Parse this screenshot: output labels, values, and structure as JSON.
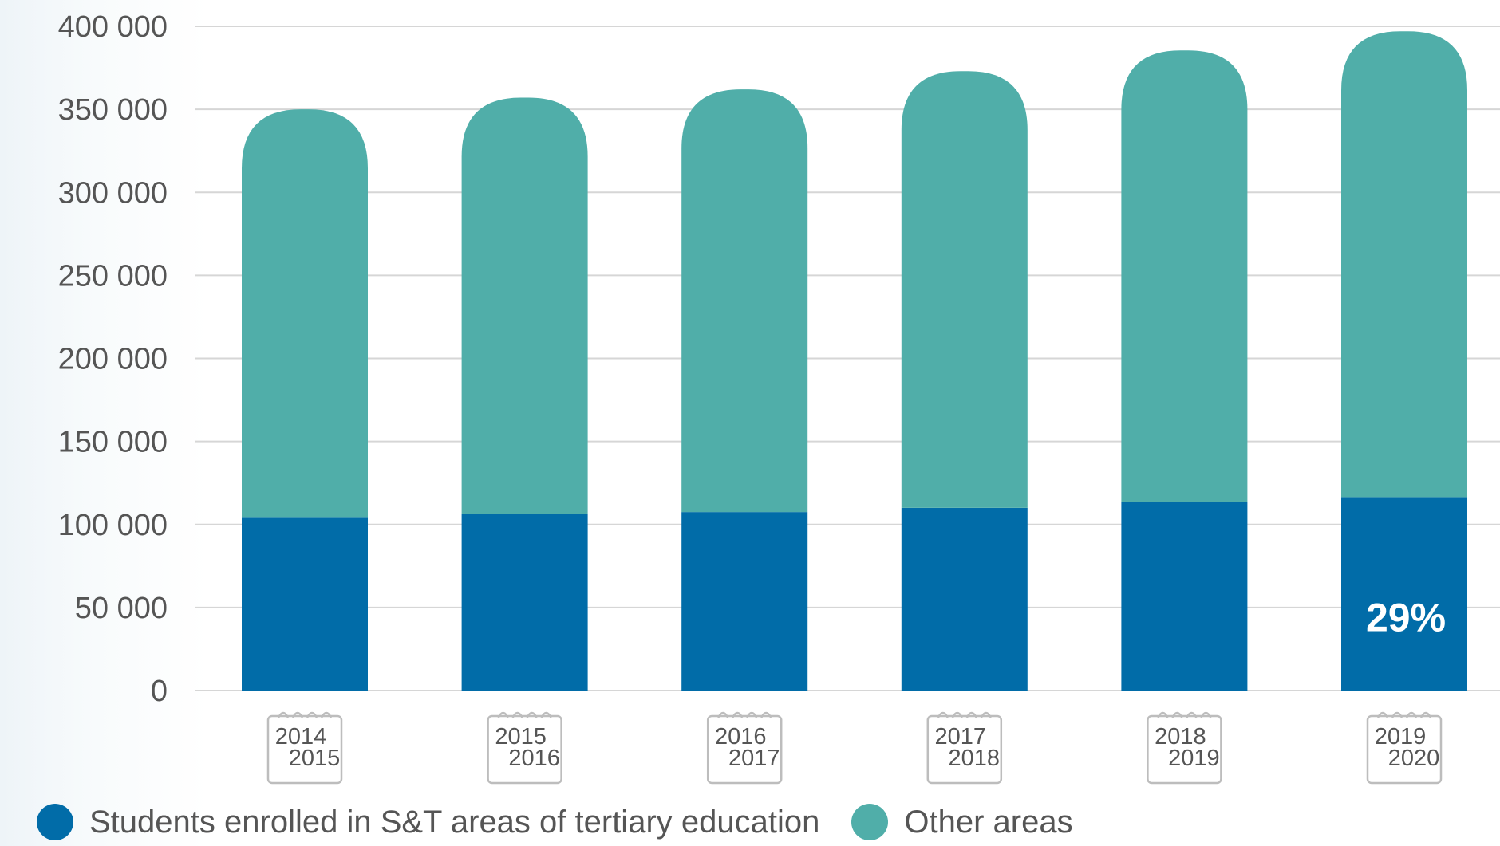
{
  "chart_data": {
    "type": "bar",
    "stacked": true,
    "categories": [
      [
        "2014",
        "2015"
      ],
      [
        "2015",
        "2016"
      ],
      [
        "2016",
        "2017"
      ],
      [
        "2017",
        "2018"
      ],
      [
        "2018",
        "2019"
      ],
      [
        "2019",
        "2020"
      ]
    ],
    "series": [
      {
        "name": "Students enrolled in S&T areas of tertiary education",
        "color": "#016ca8",
        "values": [
          104000,
          106500,
          107500,
          110000,
          113500,
          116500
        ]
      },
      {
        "name": "Other areas",
        "color": "#50aea9",
        "values": [
          246000,
          250500,
          254500,
          263000,
          272000,
          280500
        ]
      }
    ],
    "yticks": [
      "0",
      "50 000",
      "100 000",
      "150 000",
      "200 000",
      "250 000",
      "300 000",
      "350 000",
      "400 000"
    ],
    "ylim": [
      0,
      400000
    ],
    "grid": true,
    "legend_position": "bottom",
    "annotations": [
      {
        "category_index": 5,
        "series_index": 0,
        "text": "29%"
      }
    ]
  }
}
